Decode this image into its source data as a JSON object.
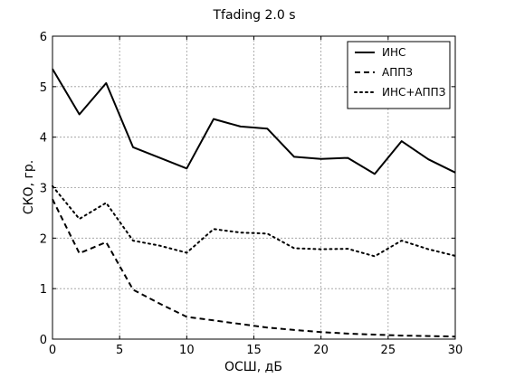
{
  "chart_data": {
    "type": "line",
    "title": "Tfading 2.0 s",
    "xlabel": "ОСШ, дБ",
    "ylabel": "СКО, гр.",
    "xlim": [
      0,
      30
    ],
    "ylim": [
      0,
      6
    ],
    "xticks": [
      0,
      5,
      10,
      15,
      20,
      25,
      30
    ],
    "yticks": [
      0,
      1,
      2,
      3,
      4,
      5,
      6
    ],
    "grid": true,
    "legend_position": "top-right",
    "x": [
      0,
      2,
      4,
      6,
      8,
      10,
      12,
      14,
      16,
      18,
      20,
      22,
      24,
      26,
      28,
      30
    ],
    "series": [
      {
        "name": "ИНС",
        "style": "solid",
        "color": "#000000",
        "values": [
          5.35,
          4.45,
          5.07,
          3.8,
          3.59,
          3.38,
          4.36,
          4.21,
          4.17,
          3.61,
          3.57,
          3.59,
          3.27,
          3.92,
          3.56,
          3.3
        ]
      },
      {
        "name": "АППЗ",
        "style": "dashed",
        "color": "#000000",
        "values": [
          2.77,
          1.7,
          1.92,
          0.98,
          0.7,
          0.44,
          0.37,
          0.3,
          0.23,
          0.18,
          0.14,
          0.11,
          0.09,
          0.07,
          0.06,
          0.05
        ]
      },
      {
        "name": "ИНС+АППЗ",
        "style": "dotted",
        "color": "#000000",
        "values": [
          3.03,
          2.38,
          2.7,
          1.95,
          1.85,
          1.71,
          2.18,
          2.11,
          2.09,
          1.8,
          1.78,
          1.79,
          1.64,
          1.95,
          1.78,
          1.65
        ]
      }
    ]
  }
}
